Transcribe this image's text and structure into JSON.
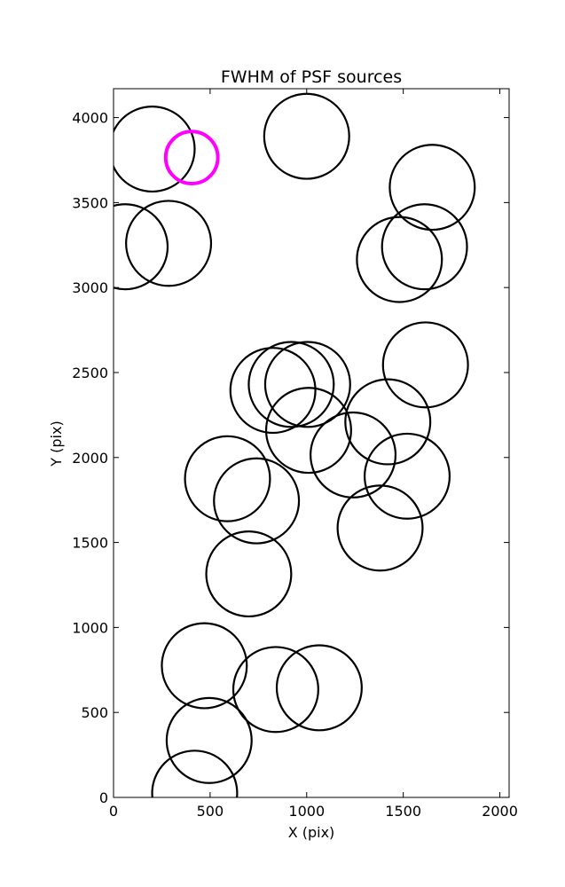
{
  "chart_data": {
    "type": "scatter",
    "title": "FWHM of PSF sources",
    "xlabel": "X (pix)",
    "ylabel": "Y (pix)",
    "xlim": [
      0,
      2048
    ],
    "ylim": [
      0,
      4170
    ],
    "xticks": [
      0,
      500,
      1000,
      1500,
      2000
    ],
    "yticks": [
      0,
      500,
      1000,
      1500,
      2000,
      2500,
      3000,
      3500,
      4000
    ],
    "grid": false,
    "marker": "circle",
    "circle_color": "#000000",
    "highlight_color": "#ff00ff",
    "points": [
      {
        "x": 200,
        "y": 3815,
        "r": 220
      },
      {
        "x": 60,
        "y": 3240,
        "r": 220
      },
      {
        "x": 285,
        "y": 3260,
        "r": 220
      },
      {
        "x": 1000,
        "y": 3890,
        "r": 220
      },
      {
        "x": 1650,
        "y": 3590,
        "r": 220
      },
      {
        "x": 1610,
        "y": 3240,
        "r": 220
      },
      {
        "x": 1480,
        "y": 3165,
        "r": 220
      },
      {
        "x": 1615,
        "y": 2545,
        "r": 220
      },
      {
        "x": 825,
        "y": 2395,
        "r": 220
      },
      {
        "x": 920,
        "y": 2430,
        "r": 220
      },
      {
        "x": 1005,
        "y": 2430,
        "r": 220
      },
      {
        "x": 1010,
        "y": 2160,
        "r": 220
      },
      {
        "x": 1420,
        "y": 2210,
        "r": 220
      },
      {
        "x": 1240,
        "y": 2015,
        "r": 220
      },
      {
        "x": 1520,
        "y": 1890,
        "r": 220
      },
      {
        "x": 590,
        "y": 1875,
        "r": 220
      },
      {
        "x": 740,
        "y": 1745,
        "r": 220
      },
      {
        "x": 1380,
        "y": 1585,
        "r": 220
      },
      {
        "x": 700,
        "y": 1315,
        "r": 220
      },
      {
        "x": 470,
        "y": 775,
        "r": 220
      },
      {
        "x": 840,
        "y": 635,
        "r": 220
      },
      {
        "x": 1065,
        "y": 645,
        "r": 220
      },
      {
        "x": 495,
        "y": 335,
        "r": 220
      },
      {
        "x": 420,
        "y": 25,
        "r": 220
      },
      {
        "x": 405,
        "y": 3765,
        "r": 135,
        "highlight": true
      }
    ]
  }
}
